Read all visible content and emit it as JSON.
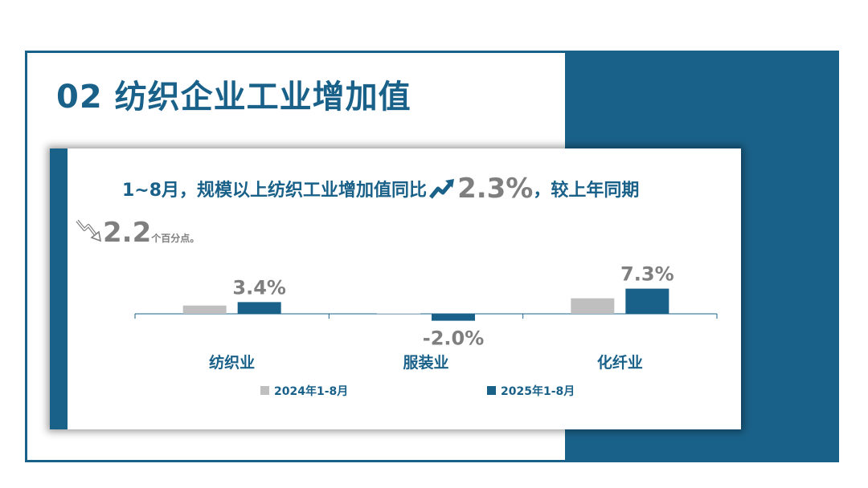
{
  "title": "02 纺织企业工业增加值",
  "headline": {
    "text_before": "1~8月，规模以上纺织工业增加值同比",
    "value": "2.3%",
    "text_after": "，较上年同期",
    "trend_icon": "arrow-up-icon"
  },
  "subline": {
    "trend_icon": "arrow-down-icon",
    "value": "2.2",
    "unit": "个百分点。"
  },
  "colors": {
    "primary": "#1a6189",
    "series_2024": "#bfbfbf",
    "series_2025": "#1a6189",
    "label": "#7f7f7f"
  },
  "chart_data": {
    "type": "bar",
    "categories": [
      "纺织业",
      "服装业",
      "化纤业"
    ],
    "series": [
      {
        "name": "2024年1-8月",
        "values": [
          2.4,
          0.1,
          4.5
        ]
      },
      {
        "name": "2025年1-8月",
        "values": [
          3.4,
          -2.0,
          7.3
        ]
      }
    ],
    "data_labels": [
      "3.4%",
      "-2.0%",
      "7.3%"
    ],
    "legend_position": "bottom"
  }
}
